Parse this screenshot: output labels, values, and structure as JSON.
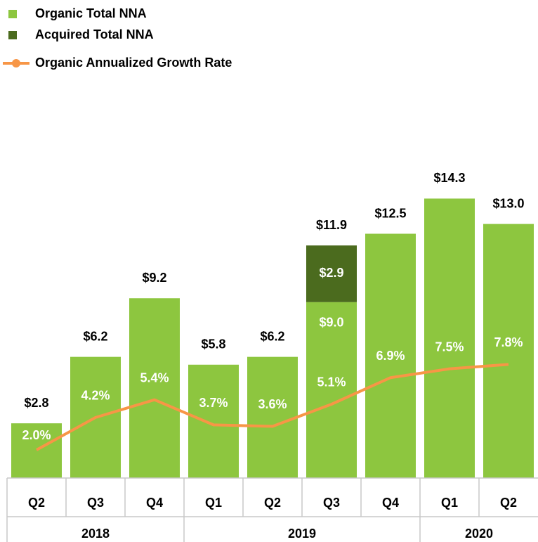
{
  "chart_data": {
    "type": "stacked-bar-line",
    "groups": [
      {
        "name": "2018",
        "categories": [
          "Q2",
          "Q3",
          "Q4"
        ]
      },
      {
        "name": "2019",
        "categories": [
          "Q1",
          "Q2",
          "Q3",
          "Q4"
        ]
      },
      {
        "name": "2020",
        "categories": [
          "Q1",
          "Q2"
        ]
      }
    ],
    "series": [
      {
        "name": "Organic Total NNA",
        "color": "#8dc63f",
        "kind": "bar",
        "values": [
          2.8,
          6.2,
          9.2,
          5.8,
          6.2,
          9.0,
          12.5,
          14.3,
          13.0
        ],
        "value_labels": [
          null,
          null,
          null,
          null,
          null,
          "$9.0",
          null,
          null,
          null
        ]
      },
      {
        "name": "Acquired Total NNA",
        "color": "#4b6b1e",
        "kind": "bar",
        "values": [
          null,
          null,
          null,
          null,
          null,
          2.9,
          null,
          null,
          null
        ],
        "value_labels": [
          null,
          null,
          null,
          null,
          null,
          "$2.9",
          null,
          null,
          null
        ]
      },
      {
        "name": "Organic Annualized Growth Rate",
        "color": "#f79646",
        "kind": "line",
        "axis": "y2",
        "values": [
          2.0,
          4.2,
          5.4,
          3.7,
          3.6,
          5.1,
          6.9,
          7.5,
          7.8
        ],
        "value_labels": [
          "2.0%",
          "4.2%",
          "5.4%",
          "3.7%",
          "3.6%",
          "5.1%",
          "6.9%",
          "7.5%",
          "7.8%"
        ]
      }
    ],
    "totals": [
      2.8,
      6.2,
      9.2,
      5.8,
      6.2,
      11.9,
      12.5,
      14.3,
      13.0
    ],
    "total_labels": [
      "$2.8",
      "$6.2",
      "$9.2",
      "$5.8",
      "$6.2",
      "$11.9",
      "$12.5",
      "$14.3",
      "$13.0"
    ],
    "ylim": [
      0,
      20
    ],
    "y2lim": [
      0,
      26.5
    ]
  }
}
